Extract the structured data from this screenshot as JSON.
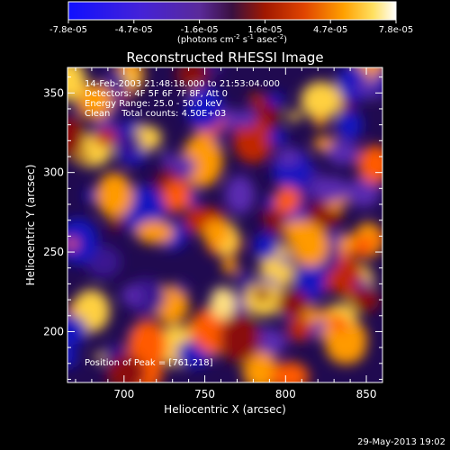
{
  "colorbar": {
    "tick_labels": [
      "-7.8e-05",
      "-4.7e-05",
      "-1.6e-05",
      "1.6e-05",
      "4.7e-05",
      "7.8e-05"
    ],
    "unit_label": "(photons cm",
    "unit_sup1": "-2",
    "unit_mid": " s",
    "unit_sup2": "-1",
    "unit_end": " asec",
    "unit_sup3": "-2",
    "unit_close": ")"
  },
  "chart_data": {
    "type": "heatmap",
    "title": "Reconstructed RHESSI Image",
    "xlabel": "Heliocentric X (arcsec)",
    "ylabel": "Heliocentric Y (arcsec)",
    "xlim": [
      665,
      860
    ],
    "ylim": [
      168,
      366
    ],
    "x_ticks": [
      700,
      750,
      800,
      850
    ],
    "y_ticks": [
      200,
      250,
      300,
      350
    ],
    "colorbar_range": [
      -7.8e-05,
      7.8e-05
    ],
    "colormap": "blue-purple-red-yellow-white",
    "annotations": [
      "14-Feb-2003 21:48:18.000 to 21:53:04.000",
      "Detectors: 4F 5F 6F 7F 8F, Att 0",
      "Energy Range: 25.0 - 50.0 keV",
      "Clean    Total counts: 4.50E+03"
    ],
    "peak_label": "Position of Peak = [761,218]",
    "peak_position": [
      761,
      218
    ]
  },
  "footer": {
    "timestamp": "29-May-2013 19:02"
  }
}
